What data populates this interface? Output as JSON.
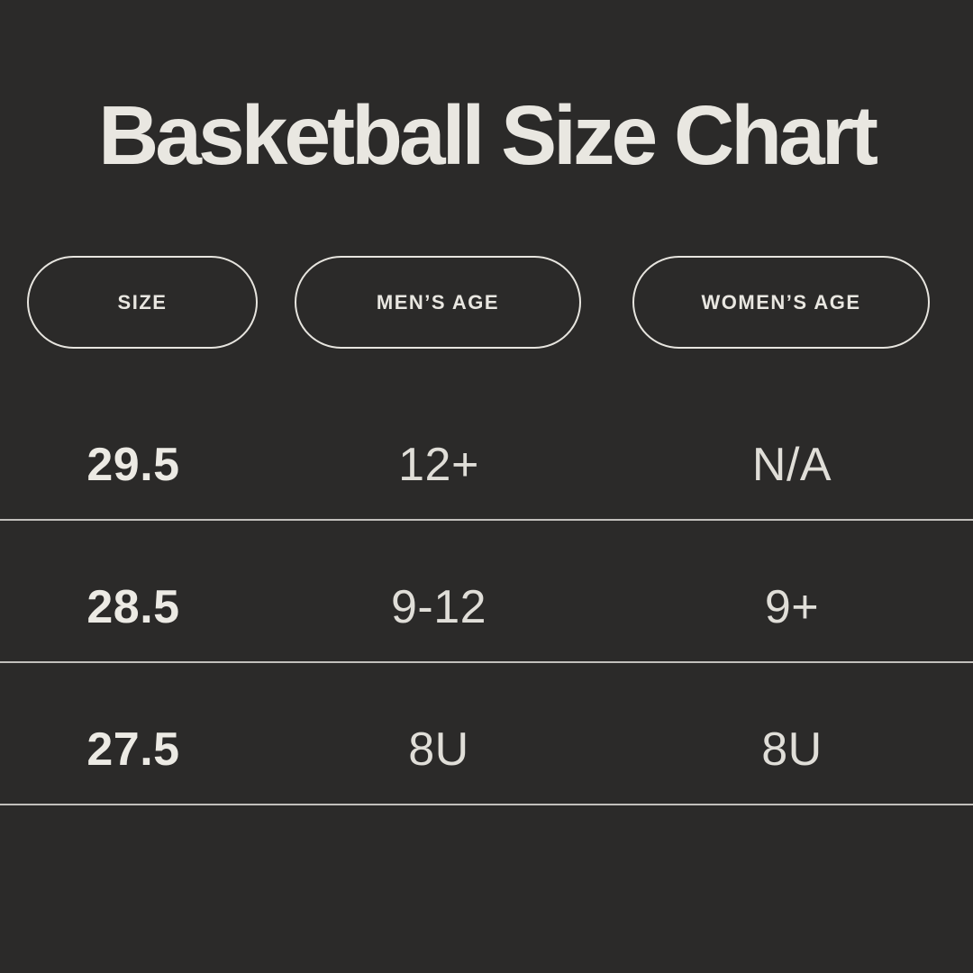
{
  "chart_data": {
    "type": "table",
    "title": "Basketball Size Chart",
    "columns": [
      "SIZE",
      "MEN’S AGE",
      "WOMEN’S AGE"
    ],
    "rows": [
      [
        "29.5",
        "12+",
        "N/A"
      ],
      [
        "28.5",
        "9-12",
        "9+"
      ],
      [
        "27.5",
        "8U",
        "8U"
      ]
    ]
  },
  "colors": {
    "background": "#2b2a29",
    "text": "#e9e7e1",
    "value_text": "#e0ded8",
    "pill_border": "#e7e5df",
    "divider": "#c2c0bc"
  }
}
